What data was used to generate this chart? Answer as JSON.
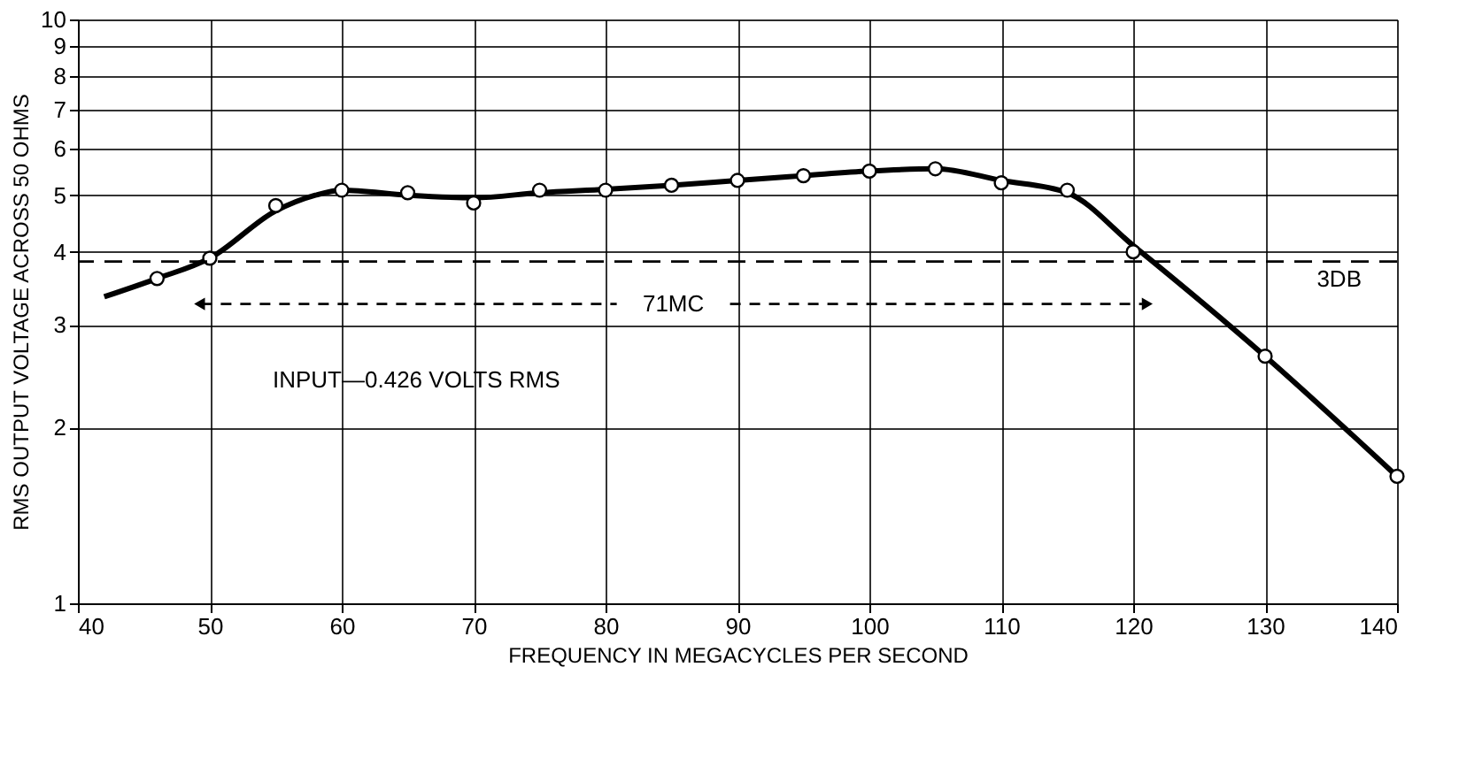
{
  "chart_data": {
    "type": "line",
    "xlabel": "FREQUENCY IN MEGACYCLES PER SECOND",
    "ylabel": "RMS OUTPUT VOLTAGE ACROSS 50 OHMS",
    "xlim": [
      40,
      140
    ],
    "xticks": [
      40,
      50,
      60,
      70,
      80,
      90,
      100,
      110,
      120,
      130,
      140
    ],
    "ylim": [
      1,
      10
    ],
    "yticks": [
      1,
      2,
      3,
      4,
      5,
      6,
      7,
      8,
      9,
      10
    ],
    "log": "y",
    "grid": true,
    "series": [
      {
        "color": "#000000",
        "marker": "none",
        "x": [
          42,
          46,
          50,
          55,
          58,
          60,
          65,
          70,
          75,
          80,
          85,
          90,
          95,
          100,
          105,
          110,
          115,
          120,
          130,
          140
        ],
        "values": [
          3.35,
          3.6,
          3.9,
          4.7,
          5.0,
          5.1,
          5.0,
          4.95,
          5.05,
          5.12,
          5.2,
          5.3,
          5.4,
          5.5,
          5.55,
          5.3,
          5.05,
          4.1,
          2.65,
          1.65
        ]
      },
      {
        "type": "scatter",
        "color": "#000000",
        "marker": "circle",
        "x": [
          46,
          50,
          55,
          60,
          65,
          70,
          75,
          80,
          85,
          90,
          95,
          100,
          105,
          110,
          115,
          120,
          130,
          140
        ],
        "values": [
          3.6,
          3.9,
          4.8,
          5.1,
          5.05,
          4.85,
          5.1,
          5.1,
          5.2,
          5.3,
          5.4,
          5.5,
          5.55,
          5.25,
          5.1,
          4.0,
          2.65,
          1.65
        ]
      }
    ],
    "ref_lines": [
      {
        "axis": "y",
        "value": 3.85,
        "label": "3DB",
        "line_style": "dashed",
        "color": "#000000"
      }
    ],
    "annotations": [
      "71MC",
      "INPUT—0.426 VOLTS RMS"
    ]
  }
}
